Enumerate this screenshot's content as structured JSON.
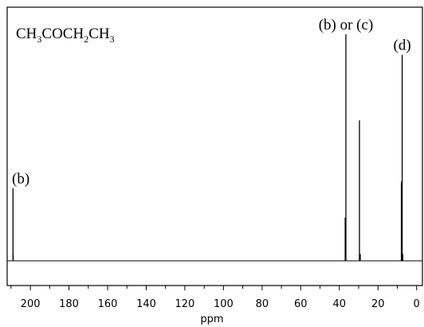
{
  "chart_data": {
    "type": "line",
    "title_parts": [
      {
        "text": "CH",
        "sub": false
      },
      {
        "text": "3",
        "sub": true
      },
      {
        "text": "COCH",
        "sub": false
      },
      {
        "text": "2",
        "sub": true
      },
      {
        "text": "CH",
        "sub": false
      },
      {
        "text": "3",
        "sub": true
      }
    ],
    "xlabel": "ppm",
    "ylabel": "",
    "xlim": [
      212,
      -3
    ],
    "ylim": [
      0,
      100
    ],
    "baseline": 0,
    "x_ticks": [
      200,
      180,
      160,
      140,
      120,
      100,
      80,
      60,
      40,
      20,
      0
    ],
    "x_tick_labels": [
      "200",
      "180",
      "160",
      "140",
      "120",
      "100",
      "80",
      "60",
      "40",
      "20",
      "0"
    ],
    "peaks": [
      {
        "ppm": 209.0,
        "intensity": 32
      },
      {
        "ppm": 208.9,
        "intensity": 3
      },
      {
        "ppm": 37.0,
        "intensity": 19
      },
      {
        "ppm": 36.6,
        "intensity": 100
      },
      {
        "ppm": 29.6,
        "intensity": 62
      },
      {
        "ppm": 29.2,
        "intensity": 3
      },
      {
        "ppm": 7.9,
        "intensity": 35
      },
      {
        "ppm": 7.5,
        "intensity": 91
      },
      {
        "ppm": 7.2,
        "intensity": 3
      }
    ],
    "annotations": [
      {
        "text": "(b)",
        "ppm": 209.0
      },
      {
        "text": "(b) or (c)",
        "ppm": 36.6
      },
      {
        "text": "(d)",
        "ppm": 7.5
      }
    ]
  }
}
